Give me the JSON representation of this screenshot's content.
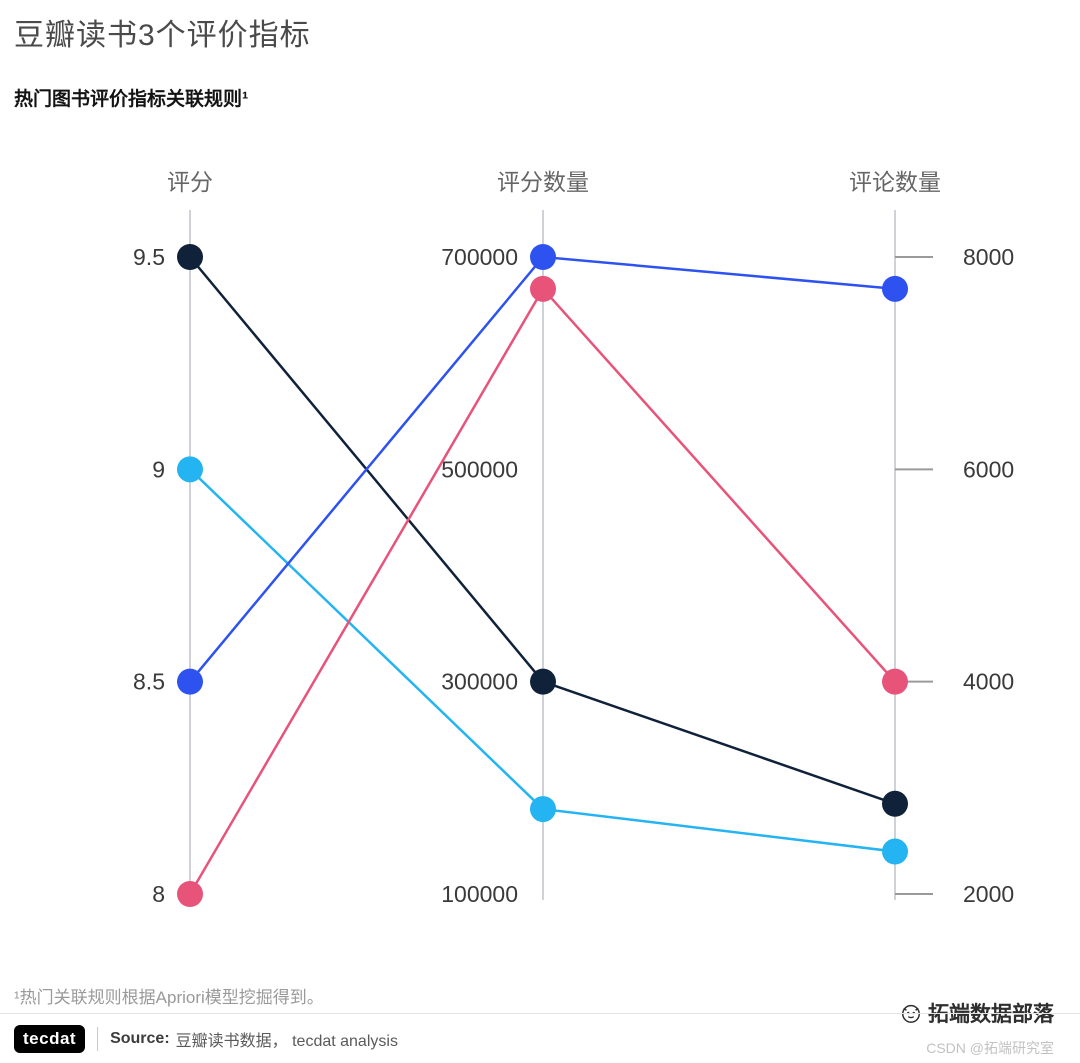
{
  "chart_data": {
    "type": "parallel-coordinates",
    "title": "豆瓣读书3个评价指标",
    "subtitle": "热门图书评价指标关联规则¹",
    "grid": false,
    "legend": "none",
    "axes": [
      {
        "label": "评分",
        "min": 8,
        "max": 9.5,
        "side": "left",
        "ticks": [
          9.5,
          9,
          8.5,
          8
        ],
        "tick_labels": [
          "9.5",
          "9",
          "8.5",
          "8"
        ]
      },
      {
        "label": "评分数量",
        "min": 100000,
        "max": 700000,
        "side": "left",
        "ticks": [
          700000,
          500000,
          300000,
          100000
        ],
        "tick_labels": [
          "700000",
          "500000",
          "300000",
          "100000"
        ]
      },
      {
        "label": "评论数量",
        "min": 2000,
        "max": 8000,
        "side": "right",
        "ticks": [
          8000,
          6000,
          4000,
          2000
        ],
        "tick_labels": [
          "8000",
          "6000",
          "4000",
          "2000"
        ]
      }
    ],
    "series": [
      {
        "name": "navy",
        "color": "#10213a",
        "values": [
          9.5,
          300000,
          2850
        ]
      },
      {
        "name": "cyan",
        "color": "#24b4f2",
        "values": [
          9,
          180000,
          2400
        ]
      },
      {
        "name": "blue",
        "color": "#2e52f0",
        "values": [
          8.5,
          700000,
          7700
        ]
      },
      {
        "name": "pink",
        "color": "#e8537a",
        "values": [
          8,
          670000,
          4000
        ]
      }
    ]
  },
  "footnote": "¹热门关联规则根据Apriori模型挖掘得到。",
  "footer": {
    "logo_text": "tecdat",
    "source_label": "Source:",
    "source_text": "豆瓣读书数据， tecdat analysis"
  },
  "watermark": {
    "brand": "拓端数据部落",
    "csdn": "CSDN @拓端研究室"
  }
}
